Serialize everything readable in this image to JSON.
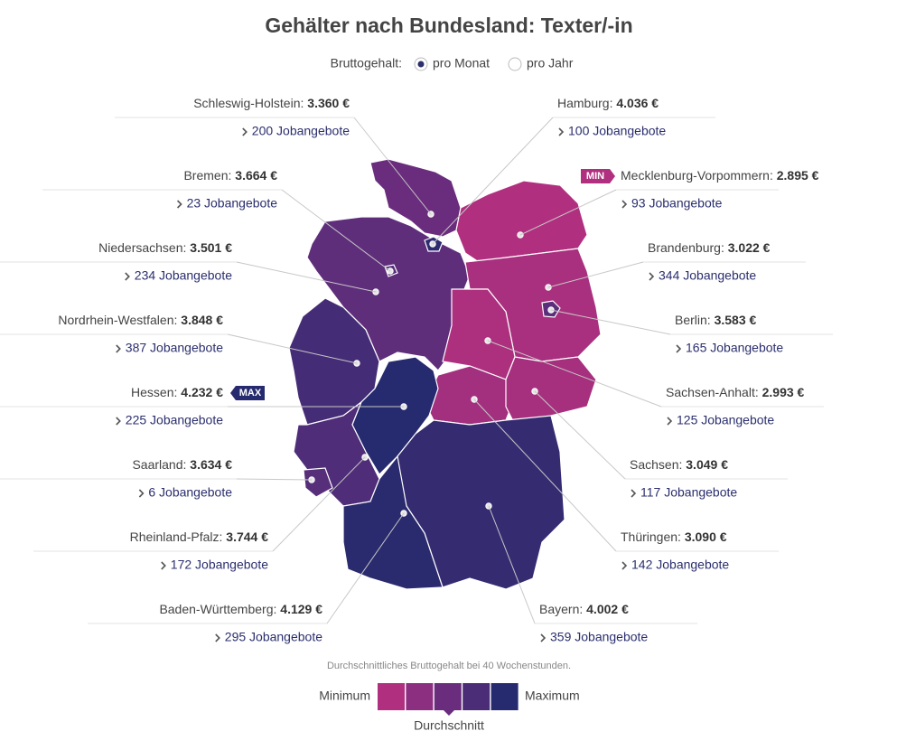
{
  "title": "Gehälter nach Bundesland: Texter/-in",
  "salary_toggle": {
    "label": "Bruttogehalt:",
    "options": [
      "pro Monat",
      "pro Jahr"
    ]
  },
  "states": [
    {
      "name": "Schleswig-Holstein:",
      "salary": "3.360 €",
      "jobs": "200 Jobangebote",
      "color": "#6a2d7d"
    },
    {
      "name": "Hamburg:",
      "salary": "4.036 €",
      "jobs": "100 Jobangebote",
      "color": "#2e2b6f"
    },
    {
      "name": "Bremen:",
      "salary": "3.664 €",
      "jobs": "23 Jobangebote",
      "color": "#552e7a"
    },
    {
      "name": "Niedersachsen:",
      "salary": "3.501 €",
      "jobs": "234 Jobangebote",
      "color": "#5f2e7b"
    },
    {
      "name": "Mecklenburg-Vorpommern:",
      "salary": "2.895 €",
      "jobs": "93 Jobangebote",
      "color": "#b02f7f",
      "badge": "MIN"
    },
    {
      "name": "Brandenburg:",
      "salary": "3.022 €",
      "jobs": "344 Jobangebote",
      "color": "#a9307e"
    },
    {
      "name": "Nordrhein-Westfalen:",
      "salary": "3.848 €",
      "jobs": "387 Jobangebote",
      "color": "#452c76"
    },
    {
      "name": "Berlin:",
      "salary": "3.583 €",
      "jobs": "165 Jobangebote",
      "color": "#5a2e7a"
    },
    {
      "name": "Hessen:",
      "salary": "4.232 €",
      "jobs": "225 Jobangebote",
      "color": "#262a6e",
      "badge": "MAX"
    },
    {
      "name": "Sachsen-Anhalt:",
      "salary": "2.993 €",
      "jobs": "125 Jobangebote",
      "color": "#ad307f"
    },
    {
      "name": "Saarland:",
      "salary": "3.634 €",
      "jobs": "6 Jobangebote",
      "color": "#572e7a"
    },
    {
      "name": "Sachsen:",
      "salary": "3.049 €",
      "jobs": "117 Jobangebote",
      "color": "#a6307e"
    },
    {
      "name": "Rheinland-Pfalz:",
      "salary": "3.744 €",
      "jobs": "172 Jobangebote",
      "color": "#4f2d78"
    },
    {
      "name": "Thüringen:",
      "salary": "3.090 €",
      "jobs": "142 Jobangebote",
      "color": "#a2307e"
    },
    {
      "name": "Baden-Württemberg:",
      "salary": "4.129 €",
      "jobs": "295 Jobangebote",
      "color": "#2a2a6e"
    },
    {
      "name": "Bayern:",
      "salary": "4.002 €",
      "jobs": "359 Jobangebote",
      "color": "#352b71"
    }
  ],
  "legend": {
    "note": "Durchschnittliches Bruttogehalt bei 40 Wochenstunden.",
    "min": "Minimum",
    "max": "Maximum",
    "avg": "Durchschnitt",
    "colors": [
      "#b02f7f",
      "#8c2f80",
      "#6a2d7d",
      "#4a2c77",
      "#262a6e"
    ]
  }
}
